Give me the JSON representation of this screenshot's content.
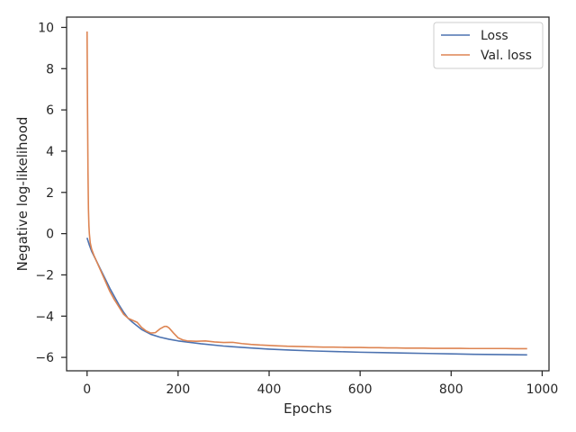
{
  "chart_data": {
    "type": "line",
    "title": "",
    "xlabel": "Epochs",
    "ylabel": "Negative log-likelihood",
    "xlim": [
      -45,
      1015
    ],
    "ylim": [
      -6.65,
      10.5
    ],
    "xticks": [
      0,
      200,
      400,
      600,
      800,
      1000
    ],
    "yticks": [
      -6,
      -4,
      -2,
      0,
      2,
      4,
      6,
      8,
      10
    ],
    "grid": false,
    "legend_position": "top-right",
    "series": [
      {
        "name": "Loss",
        "color": "#4C72B0",
        "x": [
          0,
          5,
          10,
          20,
          30,
          40,
          50,
          60,
          70,
          80,
          90,
          100,
          120,
          140,
          160,
          180,
          200,
          250,
          300,
          350,
          400,
          450,
          500,
          550,
          600,
          650,
          700,
          750,
          800,
          850,
          900,
          967
        ],
        "y": [
          -0.2,
          -0.55,
          -0.85,
          -1.3,
          -1.75,
          -2.2,
          -2.65,
          -3.05,
          -3.45,
          -3.8,
          -4.1,
          -4.3,
          -4.65,
          -4.88,
          -5.02,
          -5.12,
          -5.2,
          -5.34,
          -5.45,
          -5.53,
          -5.6,
          -5.65,
          -5.69,
          -5.72,
          -5.75,
          -5.77,
          -5.79,
          -5.81,
          -5.83,
          -5.85,
          -5.86,
          -5.88
        ]
      },
      {
        "name": "Val. loss",
        "color": "#DD8452",
        "x": [
          0,
          1,
          2,
          3,
          4,
          5,
          7,
          10,
          15,
          20,
          30,
          40,
          50,
          60,
          70,
          80,
          90,
          100,
          110,
          120,
          130,
          140,
          150,
          160,
          170,
          175,
          180,
          190,
          200,
          210,
          220,
          240,
          260,
          280,
          300,
          320,
          340,
          360,
          380,
          400,
          420,
          440,
          460,
          480,
          500,
          520,
          540,
          560,
          580,
          600,
          620,
          640,
          660,
          680,
          700,
          720,
          740,
          760,
          780,
          800,
          820,
          840,
          860,
          880,
          900,
          920,
          940,
          967
        ],
        "y": [
          9.8,
          6.0,
          3.0,
          1.2,
          0.4,
          0.0,
          -0.45,
          -0.75,
          -1.05,
          -1.3,
          -1.8,
          -2.3,
          -2.8,
          -3.2,
          -3.55,
          -3.9,
          -4.1,
          -4.2,
          -4.3,
          -4.55,
          -4.72,
          -4.82,
          -4.8,
          -4.62,
          -4.5,
          -4.5,
          -4.57,
          -4.82,
          -5.05,
          -5.15,
          -5.2,
          -5.22,
          -5.2,
          -5.25,
          -5.28,
          -5.27,
          -5.33,
          -5.37,
          -5.4,
          -5.42,
          -5.44,
          -5.46,
          -5.47,
          -5.48,
          -5.49,
          -5.5,
          -5.5,
          -5.51,
          -5.52,
          -5.52,
          -5.53,
          -5.53,
          -5.54,
          -5.54,
          -5.55,
          -5.55,
          -5.55,
          -5.56,
          -5.56,
          -5.56,
          -5.56,
          -5.57,
          -5.57,
          -5.57,
          -5.57,
          -5.57,
          -5.58,
          -5.58
        ]
      }
    ]
  }
}
